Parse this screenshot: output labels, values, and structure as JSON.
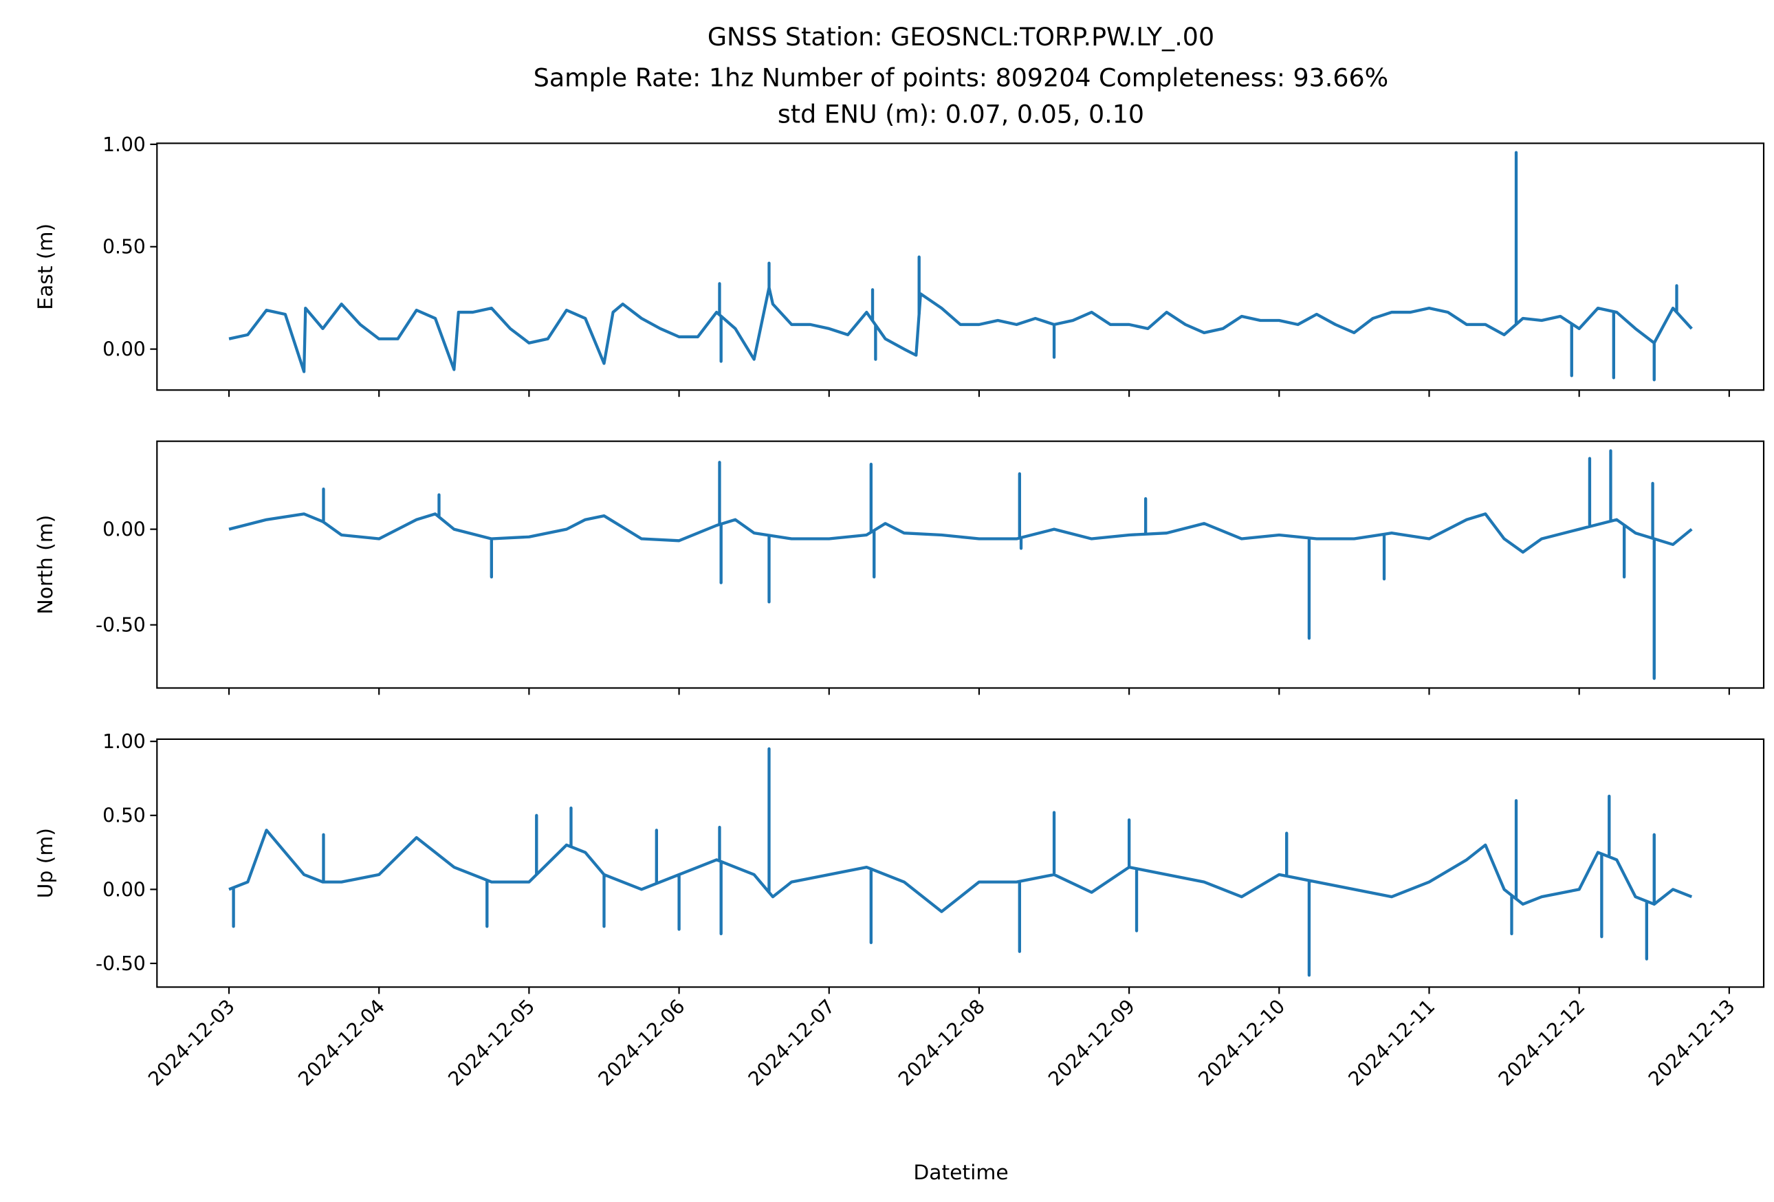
{
  "chart_data": {
    "type": "line",
    "title_lines": [
      "GNSS Station: GEOSNCL:TORP.PW.LY_.00",
      "Sample Rate: 1hz   Number of points: 809204    Completeness:  93.66%",
      "std ENU (m):  0.07, 0.05, 0.10"
    ],
    "xlabel": "Datetime",
    "x_units": "days since 2024-12-03 00:00",
    "xlim": [
      -0.48,
      10.23
    ],
    "xticks": [
      0,
      1,
      2,
      3,
      4,
      5,
      6,
      7,
      8,
      9,
      10
    ],
    "xtick_labels": [
      "2024-12-03",
      "2024-12-04",
      "2024-12-05",
      "2024-12-06",
      "2024-12-07",
      "2024-12-08",
      "2024-12-09",
      "2024-12-10",
      "2024-12-11",
      "2024-12-12",
      "2024-12-13"
    ],
    "color": "#1f77b4",
    "panels": [
      {
        "name": "east",
        "ylabel": "East (m)",
        "ylim": [
          -0.2,
          1.005
        ],
        "yticks": [
          0,
          0.5,
          1.0
        ],
        "ytick_labels": [
          "0.00",
          "0.50",
          "1.00"
        ],
        "series": [
          [
            0,
            0.05
          ],
          [
            0.125,
            0.07
          ],
          [
            0.25,
            0.19
          ],
          [
            0.375,
            0.17
          ],
          [
            0.5,
            -0.11
          ],
          [
            0.51,
            0.2
          ],
          [
            0.625,
            0.1
          ],
          [
            0.75,
            0.22
          ],
          [
            0.875,
            0.12
          ],
          [
            1,
            0.05
          ],
          [
            1.125,
            0.05
          ],
          [
            1.25,
            0.19
          ],
          [
            1.375,
            0.15
          ],
          [
            1.5,
            -0.1
          ],
          [
            1.53,
            0.18
          ],
          [
            1.625,
            0.18
          ],
          [
            1.75,
            0.2
          ],
          [
            1.875,
            0.1
          ],
          [
            2,
            0.03
          ],
          [
            2.125,
            0.05
          ],
          [
            2.25,
            0.19
          ],
          [
            2.375,
            0.15
          ],
          [
            2.5,
            -0.07
          ],
          [
            2.56,
            0.18
          ],
          [
            2.625,
            0.22
          ],
          [
            2.75,
            0.15
          ],
          [
            2.875,
            0.1
          ],
          [
            3,
            0.06
          ],
          [
            3.125,
            0.06
          ],
          [
            3.25,
            0.18
          ],
          [
            3.375,
            0.1
          ],
          [
            3.5,
            -0.05
          ],
          [
            3.6,
            0.3
          ],
          [
            3.625,
            0.22
          ],
          [
            3.75,
            0.12
          ],
          [
            3.875,
            0.12
          ],
          [
            4,
            0.1
          ],
          [
            4.125,
            0.07
          ],
          [
            4.25,
            0.18
          ],
          [
            4.375,
            0.05
          ],
          [
            4.5,
            0.0
          ],
          [
            4.58,
            -0.03
          ],
          [
            4.61,
            0.27
          ],
          [
            4.75,
            0.2
          ],
          [
            4.875,
            0.12
          ],
          [
            5,
            0.12
          ],
          [
            5.125,
            0.14
          ],
          [
            5.25,
            0.12
          ],
          [
            5.375,
            0.15
          ],
          [
            5.5,
            0.12
          ],
          [
            5.625,
            0.14
          ],
          [
            5.75,
            0.18
          ],
          [
            5.875,
            0.12
          ],
          [
            6,
            0.12
          ],
          [
            6.125,
            0.1
          ],
          [
            6.25,
            0.18
          ],
          [
            6.375,
            0.12
          ],
          [
            6.5,
            0.08
          ],
          [
            6.625,
            0.1
          ],
          [
            6.75,
            0.16
          ],
          [
            6.875,
            0.14
          ],
          [
            7,
            0.14
          ],
          [
            7.125,
            0.12
          ],
          [
            7.25,
            0.17
          ],
          [
            7.375,
            0.12
          ],
          [
            7.5,
            0.08
          ],
          [
            7.625,
            0.15
          ],
          [
            7.75,
            0.18
          ],
          [
            7.875,
            0.18
          ],
          [
            8,
            0.2
          ],
          [
            8.125,
            0.18
          ],
          [
            8.25,
            0.12
          ],
          [
            8.375,
            0.12
          ],
          [
            8.5,
            0.07
          ],
          [
            8.625,
            0.15
          ],
          [
            8.75,
            0.14
          ],
          [
            8.875,
            0.16
          ],
          [
            9,
            0.1
          ],
          [
            9.125,
            0.2
          ],
          [
            9.25,
            0.18
          ],
          [
            9.375,
            0.1
          ],
          [
            9.5,
            0.03
          ],
          [
            9.625,
            0.2
          ],
          [
            9.75,
            0.1
          ]
        ],
        "spikes": [
          [
            3.27,
            0.32
          ],
          [
            3.28,
            -0.06
          ],
          [
            3.6,
            0.42
          ],
          [
            4.29,
            0.29
          ],
          [
            4.31,
            -0.05
          ],
          [
            4.6,
            0.45
          ],
          [
            5.5,
            -0.04
          ],
          [
            8.58,
            0.96
          ],
          [
            8.95,
            -0.13
          ],
          [
            9.23,
            -0.14
          ],
          [
            9.5,
            -0.15
          ],
          [
            9.65,
            0.31
          ]
        ]
      },
      {
        "name": "north",
        "ylabel": "North (m)",
        "ylim": [
          -0.83,
          0.46
        ],
        "yticks": [
          -0.5,
          0
        ],
        "ytick_labels": [
          "-0.50",
          "0.00"
        ],
        "series": [
          [
            0,
            0.0
          ],
          [
            0.25,
            0.05
          ],
          [
            0.5,
            0.08
          ],
          [
            0.625,
            0.04
          ],
          [
            0.75,
            -0.03
          ],
          [
            1,
            -0.05
          ],
          [
            1.25,
            0.05
          ],
          [
            1.375,
            0.08
          ],
          [
            1.5,
            0.0
          ],
          [
            1.75,
            -0.05
          ],
          [
            2,
            -0.04
          ],
          [
            2.25,
            0.0
          ],
          [
            2.375,
            0.05
          ],
          [
            2.5,
            0.07
          ],
          [
            2.75,
            -0.05
          ],
          [
            3,
            -0.06
          ],
          [
            3.25,
            0.02
          ],
          [
            3.375,
            0.05
          ],
          [
            3.5,
            -0.02
          ],
          [
            3.75,
            -0.05
          ],
          [
            4,
            -0.05
          ],
          [
            4.25,
            -0.03
          ],
          [
            4.375,
            0.03
          ],
          [
            4.5,
            -0.02
          ],
          [
            4.75,
            -0.03
          ],
          [
            5,
            -0.05
          ],
          [
            5.25,
            -0.05
          ],
          [
            5.5,
            0.0
          ],
          [
            5.75,
            -0.05
          ],
          [
            6,
            -0.03
          ],
          [
            6.25,
            -0.02
          ],
          [
            6.5,
            0.03
          ],
          [
            6.75,
            -0.05
          ],
          [
            7,
            -0.03
          ],
          [
            7.25,
            -0.05
          ],
          [
            7.5,
            -0.05
          ],
          [
            7.75,
            -0.02
          ],
          [
            8,
            -0.05
          ],
          [
            8.25,
            0.05
          ],
          [
            8.375,
            0.08
          ],
          [
            8.5,
            -0.05
          ],
          [
            8.625,
            -0.12
          ],
          [
            8.75,
            -0.05
          ],
          [
            9,
            0.0
          ],
          [
            9.25,
            0.05
          ],
          [
            9.375,
            -0.02
          ],
          [
            9.5,
            -0.05
          ],
          [
            9.625,
            -0.08
          ],
          [
            9.75,
            0.0
          ]
        ],
        "spikes": [
          [
            0.63,
            0.21
          ],
          [
            1.4,
            0.18
          ],
          [
            1.75,
            -0.25
          ],
          [
            3.27,
            0.35
          ],
          [
            3.28,
            -0.28
          ],
          [
            3.6,
            -0.38
          ],
          [
            4.28,
            0.34
          ],
          [
            4.3,
            -0.25
          ],
          [
            5.27,
            0.29
          ],
          [
            5.28,
            -0.1
          ],
          [
            6.11,
            0.16
          ],
          [
            7.2,
            -0.57
          ],
          [
            7.7,
            -0.26
          ],
          [
            9.07,
            0.37
          ],
          [
            9.21,
            0.41
          ],
          [
            9.3,
            -0.25
          ],
          [
            9.49,
            0.24
          ],
          [
            9.5,
            -0.78
          ]
        ]
      },
      {
        "name": "up",
        "ylabel": "Up (m)",
        "ylim": [
          -0.66,
          1.015
        ],
        "yticks": [
          -0.5,
          0,
          0.5,
          1.0
        ],
        "ytick_labels": [
          "-0.50",
          "0.00",
          "0.50",
          "1.00"
        ],
        "series": [
          [
            0,
            0.0
          ],
          [
            0.125,
            0.05
          ],
          [
            0.25,
            0.4
          ],
          [
            0.375,
            0.25
          ],
          [
            0.5,
            0.1
          ],
          [
            0.625,
            0.05
          ],
          [
            0.75,
            0.05
          ],
          [
            1,
            0.1
          ],
          [
            1.25,
            0.35
          ],
          [
            1.375,
            0.25
          ],
          [
            1.5,
            0.15
          ],
          [
            1.75,
            0.05
          ],
          [
            2,
            0.05
          ],
          [
            2.25,
            0.3
          ],
          [
            2.375,
            0.25
          ],
          [
            2.5,
            0.1
          ],
          [
            2.75,
            0.0
          ],
          [
            3,
            0.1
          ],
          [
            3.25,
            0.2
          ],
          [
            3.375,
            0.15
          ],
          [
            3.5,
            0.1
          ],
          [
            3.625,
            -0.05
          ],
          [
            3.75,
            0.05
          ],
          [
            4,
            0.1
          ],
          [
            4.25,
            0.15
          ],
          [
            4.375,
            0.1
          ],
          [
            4.5,
            0.05
          ],
          [
            4.75,
            -0.15
          ],
          [
            4.875,
            -0.05
          ],
          [
            5,
            0.05
          ],
          [
            5.25,
            0.05
          ],
          [
            5.5,
            0.1
          ],
          [
            5.75,
            -0.02
          ],
          [
            6,
            0.15
          ],
          [
            6.25,
            0.1
          ],
          [
            6.5,
            0.05
          ],
          [
            6.75,
            -0.05
          ],
          [
            7,
            0.1
          ],
          [
            7.25,
            0.05
          ],
          [
            7.5,
            0.0
          ],
          [
            7.75,
            -0.05
          ],
          [
            8,
            0.05
          ],
          [
            8.25,
            0.2
          ],
          [
            8.375,
            0.3
          ],
          [
            8.5,
            0.0
          ],
          [
            8.625,
            -0.1
          ],
          [
            8.75,
            -0.05
          ],
          [
            9,
            0.0
          ],
          [
            9.125,
            0.25
          ],
          [
            9.25,
            0.2
          ],
          [
            9.375,
            -0.05
          ],
          [
            9.5,
            -0.1
          ],
          [
            9.625,
            0.0
          ],
          [
            9.75,
            -0.05
          ]
        ],
        "spikes": [
          [
            0.03,
            -0.25
          ],
          [
            0.63,
            0.37
          ],
          [
            1.72,
            -0.25
          ],
          [
            2.05,
            0.5
          ],
          [
            2.28,
            0.55
          ],
          [
            2.5,
            -0.25
          ],
          [
            2.85,
            0.4
          ],
          [
            3.0,
            -0.27
          ],
          [
            3.27,
            0.42
          ],
          [
            3.28,
            -0.3
          ],
          [
            3.6,
            0.95
          ],
          [
            4.28,
            -0.36
          ],
          [
            5.27,
            -0.42
          ],
          [
            5.5,
            0.52
          ],
          [
            6.0,
            0.47
          ],
          [
            6.05,
            -0.28
          ],
          [
            7.05,
            0.38
          ],
          [
            7.2,
            -0.58
          ],
          [
            8.55,
            -0.3
          ],
          [
            8.58,
            0.6
          ],
          [
            9.15,
            -0.32
          ],
          [
            9.2,
            0.63
          ],
          [
            9.45,
            -0.47
          ],
          [
            9.5,
            0.37
          ]
        ]
      }
    ]
  }
}
